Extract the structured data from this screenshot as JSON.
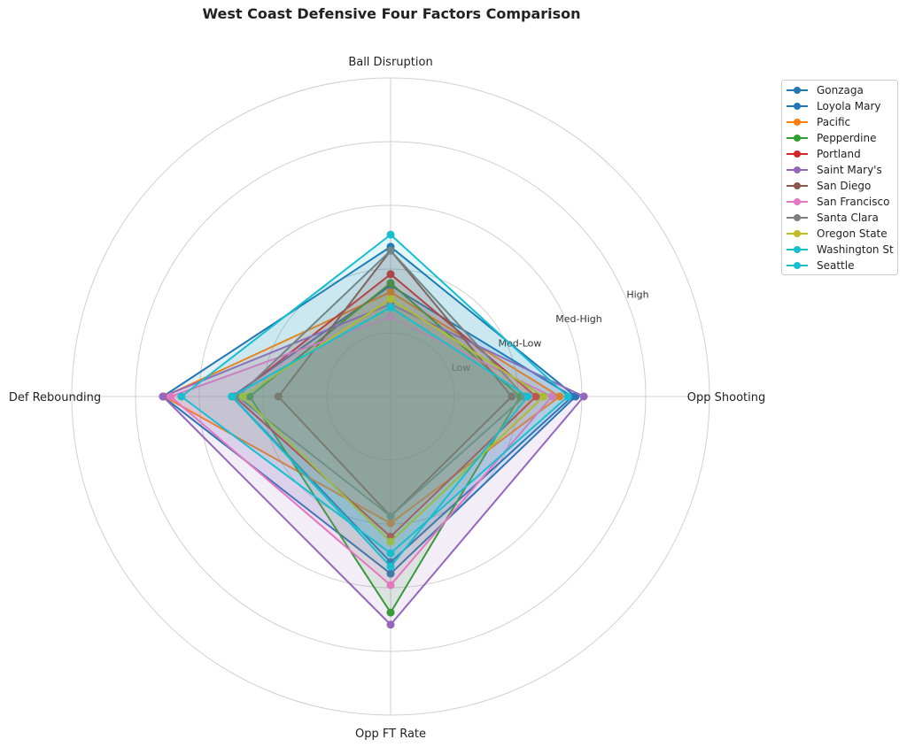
{
  "chart_data": {
    "type": "radar",
    "title": "West Coast Defensive Four Factors Comparison",
    "axes": [
      "Ball Disruption",
      "Opp Shooting",
      "Opp FT Rate",
      "Def Rebounding"
    ],
    "radial_ticks": [
      {
        "value": 1,
        "label": "Low"
      },
      {
        "value": 2,
        "label": "Med-Low"
      },
      {
        "value": 3,
        "label": "Med-High"
      },
      {
        "value": 4,
        "label": "High"
      }
    ],
    "rlim": [
      0,
      5
    ],
    "grid": true,
    "legend_position": "upper-right-outside",
    "series": [
      {
        "name": "Gonzaga",
        "color": "#1f77b4",
        "values": [
          2.35,
          2.9,
          2.78,
          3.57
        ]
      },
      {
        "name": "Loyola Mary",
        "color": "#1f77b4",
        "values": [
          1.74,
          2.85,
          2.6,
          2.49
        ]
      },
      {
        "name": "Pacific",
        "color": "#ff7f0e",
        "values": [
          1.64,
          2.65,
          1.99,
          3.55
        ]
      },
      {
        "name": "Pepperdine",
        "color": "#2ca02c",
        "values": [
          1.78,
          2.03,
          3.39,
          2.21
        ]
      },
      {
        "name": "Portland",
        "color": "#d62728",
        "values": [
          1.92,
          2.28,
          2.2,
          2.45
        ]
      },
      {
        "name": "Saint Mary's",
        "color": "#9467bd",
        "values": [
          1.45,
          3.03,
          3.58,
          3.57
        ]
      },
      {
        "name": "San Diego",
        "color": "#8c564b",
        "values": [
          2.29,
          1.9,
          1.88,
          1.76
        ]
      },
      {
        "name": "San Francisco",
        "color": "#e377c2",
        "values": [
          1.25,
          2.53,
          2.96,
          3.45
        ]
      },
      {
        "name": "Santa Clara",
        "color": "#7f7f7f",
        "values": [
          2.29,
          2.1,
          1.88,
          2.4
        ]
      },
      {
        "name": "Oregon State",
        "color": "#bcbd22",
        "values": [
          1.53,
          2.4,
          2.28,
          2.32
        ]
      },
      {
        "name": "Washington St",
        "color": "#17becf",
        "values": [
          2.54,
          2.78,
          2.46,
          3.28
        ]
      },
      {
        "name": "Seattle",
        "color": "#17becf",
        "values": [
          1.4,
          2.15,
          2.67,
          2.49
        ]
      }
    ]
  }
}
